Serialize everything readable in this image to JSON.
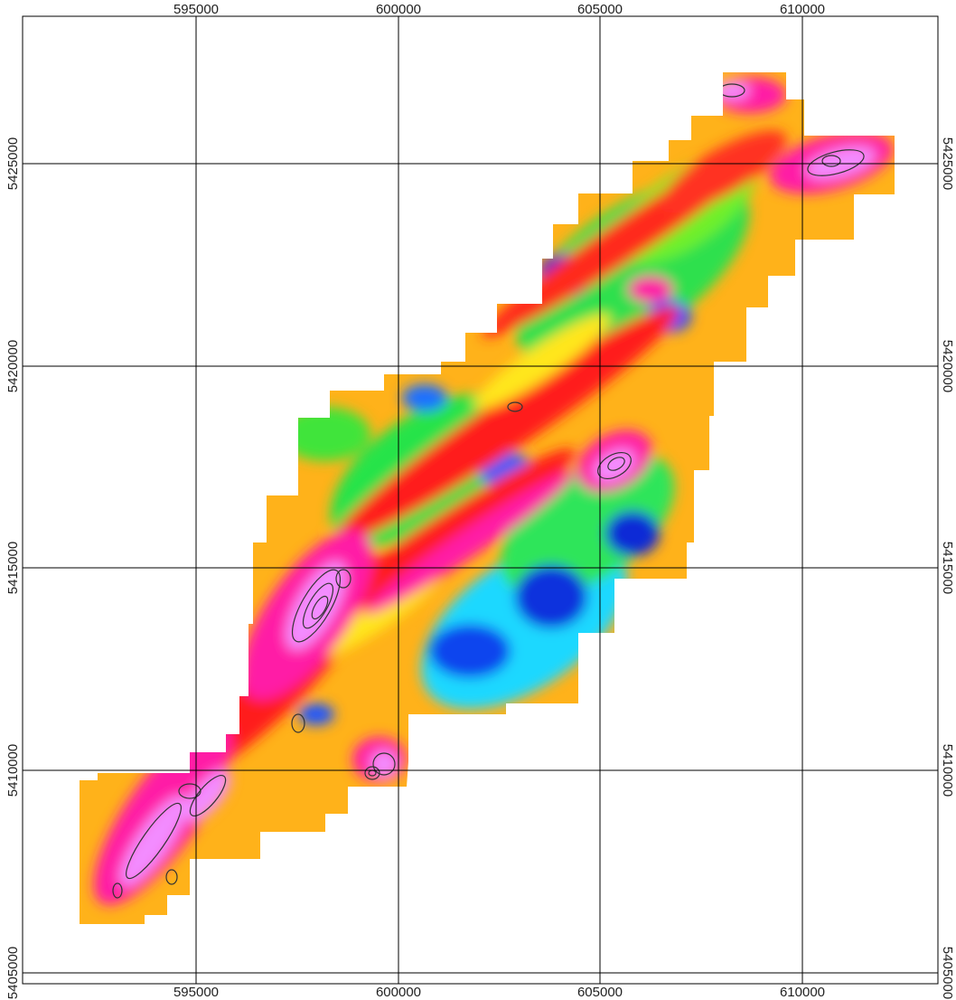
{
  "map": {
    "colors": {
      "background": "#ffffff",
      "frame": "#000000",
      "grid": "#000000",
      "contour": "#333333",
      "ramp": [
        "#0b2bd6",
        "#1f7bff",
        "#19d6ff",
        "#19e64a",
        "#b7f21a",
        "#ffe61a",
        "#ff9a1a",
        "#ff1a1a",
        "#ff1aa6",
        "#f38cff"
      ]
    },
    "easting_ticks": [
      "595000",
      "600000",
      "605000",
      "610000"
    ],
    "northing_ticks": [
      "5405000",
      "5410000",
      "5415000",
      "5420000",
      "5425000"
    ]
  }
}
